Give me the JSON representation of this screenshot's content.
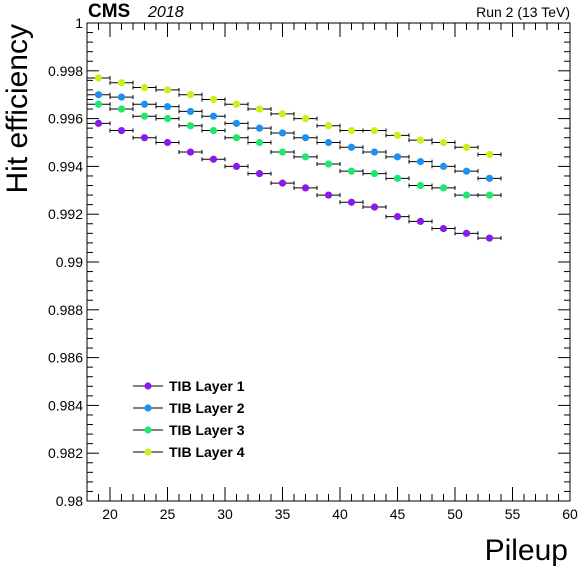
{
  "header": {
    "experiment": "CMS",
    "year": "2018",
    "run_info": "Run 2 (13 TeV)"
  },
  "chart_data": {
    "type": "scatter",
    "xlabel": "Pileup",
    "ylabel": "Hit  efficiency",
    "xlim": [
      18,
      60
    ],
    "ylim": [
      0.98,
      1.0
    ],
    "x_ticks": [
      20,
      25,
      30,
      35,
      40,
      45,
      50,
      55,
      60
    ],
    "y_ticks": [
      0.98,
      0.982,
      0.984,
      0.986,
      0.988,
      0.99,
      0.992,
      0.994,
      0.996,
      0.998,
      1
    ],
    "y_tick_labels": [
      "0.98",
      "0.982",
      "0.984",
      "0.986",
      "0.988",
      "0.99",
      "0.992",
      "0.994",
      "0.996",
      "0.998",
      "1"
    ],
    "x_error_half_width": 1,
    "legend_position": "bottom-left",
    "x": [
      19,
      21,
      23,
      25,
      27,
      29,
      31,
      33,
      35,
      37,
      39,
      41,
      43,
      45,
      47,
      49,
      51,
      53
    ],
    "series": [
      {
        "name": "TIB Layer 1",
        "color": "#8b1ae6",
        "values": [
          0.9958,
          0.9955,
          0.9952,
          0.995,
          0.9946,
          0.9943,
          0.994,
          0.9937,
          0.9933,
          0.9931,
          0.9928,
          0.9925,
          0.9923,
          0.9919,
          0.9917,
          0.9914,
          0.9912,
          0.991
        ]
      },
      {
        "name": "TIB Layer 2",
        "color": "#1e90ef",
        "values": [
          0.997,
          0.9969,
          0.9966,
          0.9965,
          0.9963,
          0.9961,
          0.9958,
          0.9956,
          0.9954,
          0.9952,
          0.995,
          0.9948,
          0.9946,
          0.9944,
          0.9942,
          0.994,
          0.9938,
          0.9935
        ]
      },
      {
        "name": "TIB Layer 3",
        "color": "#1ee66e",
        "values": [
          0.9966,
          0.9964,
          0.9961,
          0.996,
          0.9957,
          0.9955,
          0.9952,
          0.995,
          0.9946,
          0.9944,
          0.9941,
          0.9938,
          0.9937,
          0.9935,
          0.9932,
          0.9931,
          0.9928,
          0.9928
        ]
      },
      {
        "name": "TIB Layer 4",
        "color": "#c6f21c",
        "values": [
          0.9977,
          0.9975,
          0.9973,
          0.9972,
          0.997,
          0.9968,
          0.9966,
          0.9964,
          0.9962,
          0.996,
          0.9957,
          0.9955,
          0.9955,
          0.9953,
          0.9951,
          0.995,
          0.9948,
          0.9945
        ]
      }
    ]
  }
}
